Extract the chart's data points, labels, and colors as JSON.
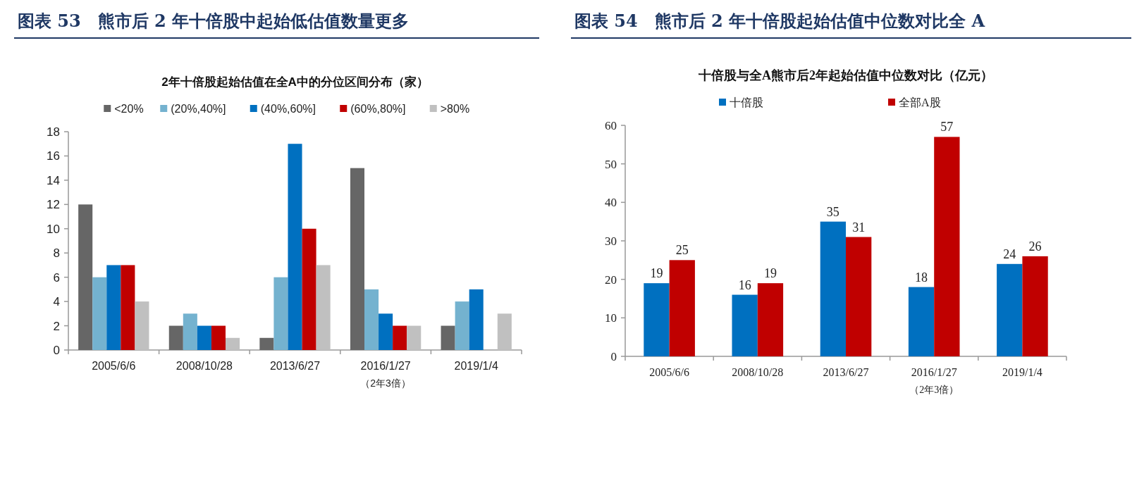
{
  "chart_data": [
    {
      "type": "bar",
      "title": "图表 53　熊市后 2 年十倍股中起始低估值数量更多",
      "subtitle": "2年十倍股起始估值在全A中的分位区间分布（家）",
      "categories": [
        "2005/6/6",
        "2008/10/28",
        "2013/6/27",
        "2016/1/27",
        "2019/1/4"
      ],
      "series": [
        {
          "name": "<20%",
          "color": "#666666",
          "values": [
            12,
            2,
            1,
            15,
            2
          ]
        },
        {
          "name": "(20%,40%]",
          "color": "#74b2cf",
          "values": [
            6,
            3,
            6,
            5,
            4
          ]
        },
        {
          "name": "(40%,60%]",
          "color": "#0070c0",
          "values": [
            7,
            2,
            17,
            3,
            5
          ]
        },
        {
          "name": "(60%,80%]",
          "color": "#c00000",
          "values": [
            7,
            2,
            10,
            2,
            0
          ]
        },
        {
          "name": ">80%",
          "color": "#c0c0c0",
          "values": [
            4,
            1,
            7,
            2,
            3
          ]
        }
      ],
      "ylim": [
        0,
        18
      ],
      "yticks": [
        0,
        2,
        4,
        6,
        8,
        10,
        12,
        14,
        16,
        18
      ],
      "legend": "top",
      "annotations": [
        "（2年3倍）"
      ]
    },
    {
      "type": "bar",
      "title": "图表 54　熊市后 2 年十倍股起始估值中位数对比全 A",
      "subtitle": "十倍股与全A熊市后2年起始估值中位数对比（亿元）",
      "categories": [
        "2005/6/6",
        "2008/10/28",
        "2013/6/27",
        "2016/1/27",
        "2019/1/4"
      ],
      "series": [
        {
          "name": "十倍股",
          "color": "#0070c0",
          "values": [
            19,
            16,
            35,
            18,
            24
          ]
        },
        {
          "name": "全部A股",
          "color": "#c00000",
          "values": [
            25,
            19,
            31,
            57,
            26
          ]
        }
      ],
      "ylim": [
        0,
        60
      ],
      "yticks": [
        0,
        10,
        20,
        30,
        40,
        50,
        60
      ],
      "legend": "top",
      "data_labels": true,
      "annotations": [
        "（2年3倍）"
      ]
    }
  ]
}
